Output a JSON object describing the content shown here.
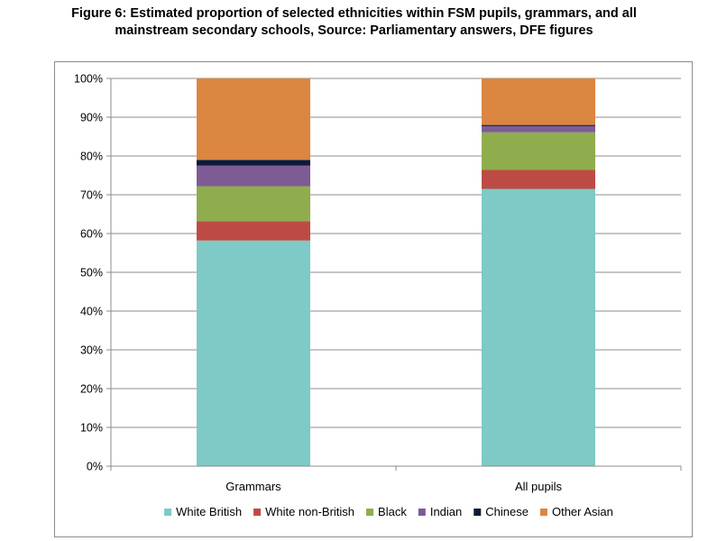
{
  "chart_data": {
    "type": "bar",
    "stacked": true,
    "title": "Figure 6: Estimated proportion of selected ethnicities within FSM pupils, grammars, and all mainstream secondary schools, Source: Parliamentary answers, DFE figures",
    "title_lines": [
      "Figure 6: Estimated proportion of selected ethnicities within FSM pupils, grammars, and all",
      "mainstream secondary schools, Source: Parliamentary answers, DFE figures"
    ],
    "categories": [
      "Grammars",
      "All pupils"
    ],
    "ylim": [
      0,
      100
    ],
    "yticks": [
      "0%",
      "10%",
      "20%",
      "30%",
      "40%",
      "50%",
      "60%",
      "70%",
      "80%",
      "90%",
      "100%"
    ],
    "grid": true,
    "legend_position": "bottom",
    "series": [
      {
        "name": "White British",
        "color": "#7ecac6",
        "values": [
          58.2,
          71.5
        ]
      },
      {
        "name": "White non-British",
        "color": "#bd4b45",
        "values": [
          5.0,
          4.9
        ]
      },
      {
        "name": "Black",
        "color": "#8fad4d",
        "values": [
          9.0,
          9.7
        ]
      },
      {
        "name": "Indian",
        "color": "#7d5c96",
        "values": [
          5.3,
          1.6
        ]
      },
      {
        "name": "Chinese",
        "color": "#0e1a3a",
        "values": [
          1.5,
          0.3
        ]
      },
      {
        "name": "Other Asian",
        "color": "#db8641",
        "values": [
          21.0,
          12.0
        ]
      }
    ]
  }
}
